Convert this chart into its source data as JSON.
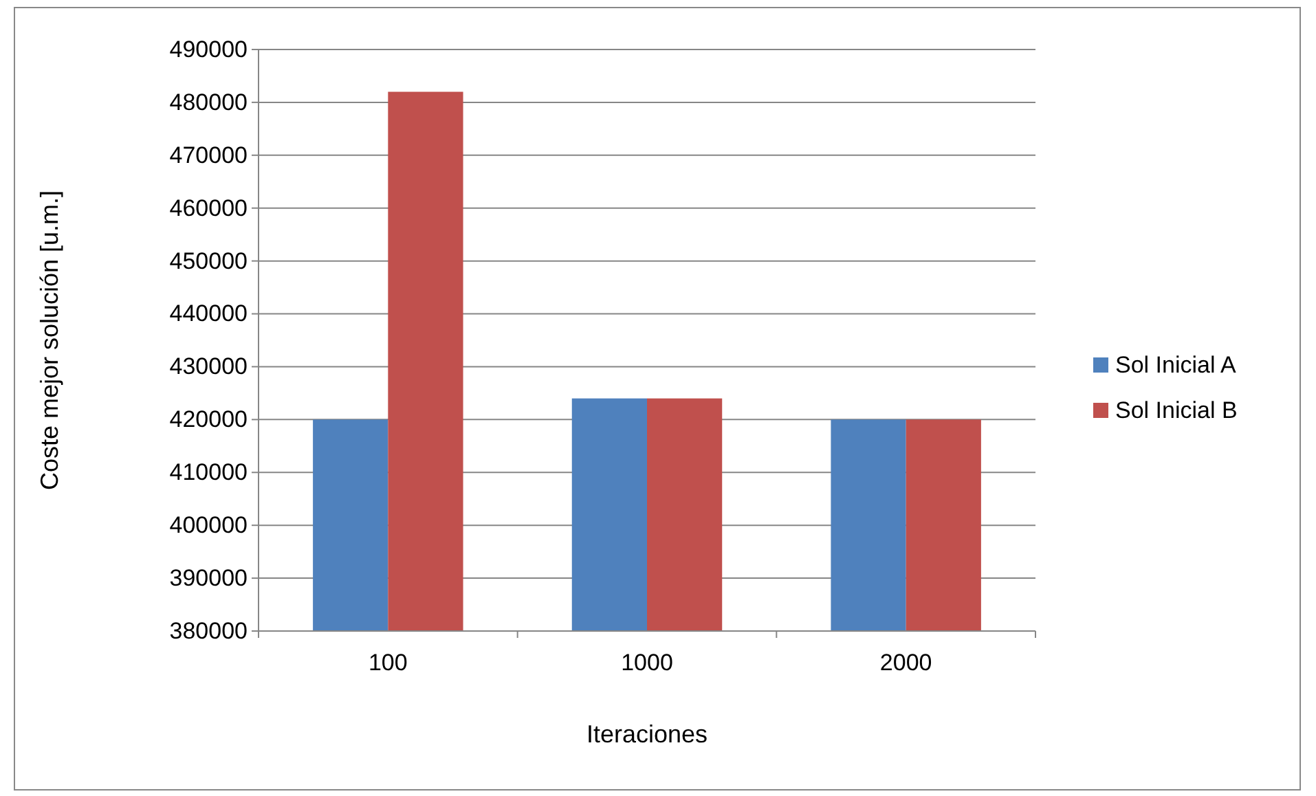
{
  "chart_data": {
    "type": "bar",
    "xlabel": "Iteraciones",
    "ylabel": "Coste mejor solución [u.m.]",
    "categories": [
      "100",
      "1000",
      "2000"
    ],
    "series": [
      {
        "name": "Sol Inicial A",
        "color": "#4f81bd",
        "values": [
          420000,
          424000,
          420000
        ]
      },
      {
        "name": "Sol Inicial B",
        "color": "#c0504d",
        "values": [
          482000,
          424000,
          420000
        ]
      }
    ],
    "ylim": [
      380000,
      490000
    ],
    "yticks": [
      380000,
      390000,
      400000,
      410000,
      420000,
      430000,
      440000,
      450000,
      460000,
      470000,
      480000,
      490000
    ],
    "grid": "y",
    "legend": "right"
  }
}
